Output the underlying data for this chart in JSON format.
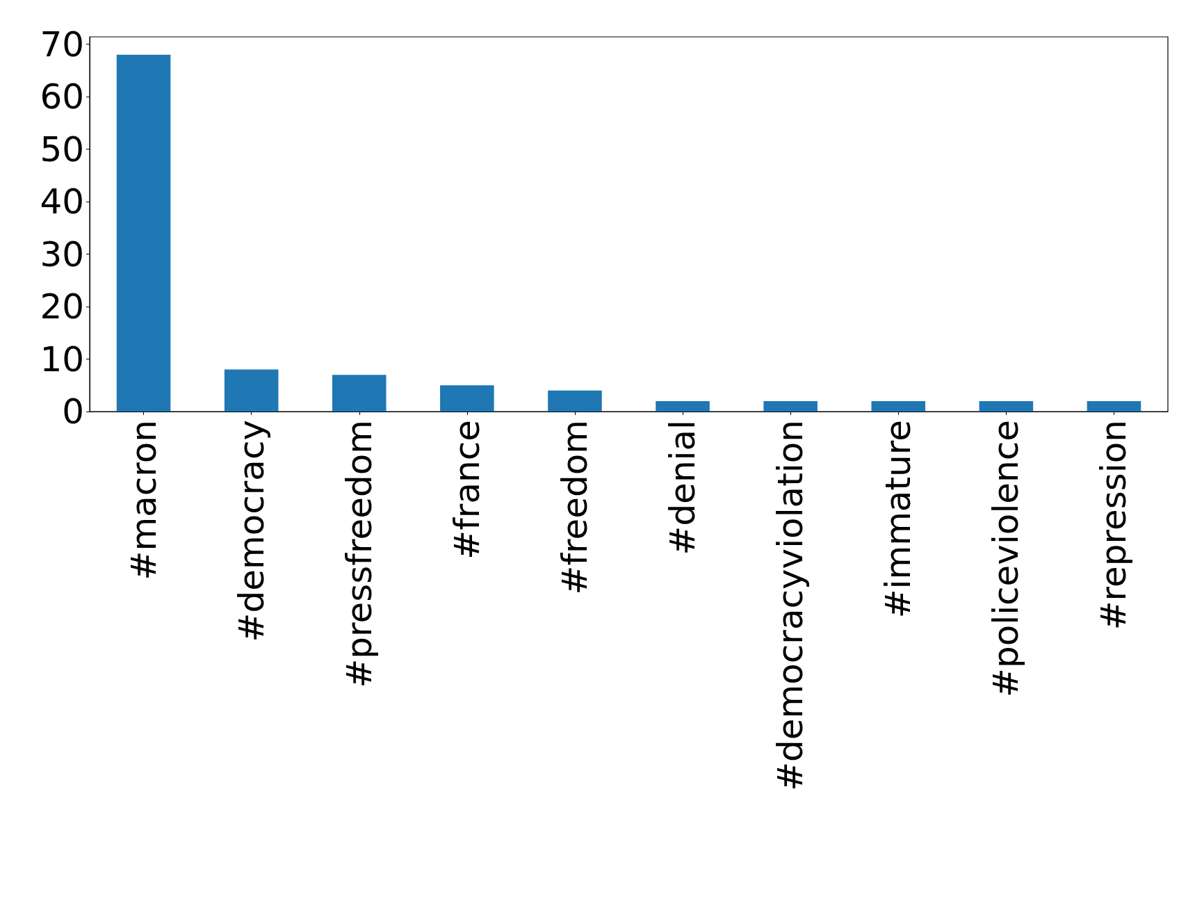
{
  "chart_data": {
    "type": "bar",
    "categories": [
      "#macron",
      "#democracy",
      "#pressfreedom",
      "#france",
      "#freedom",
      "#denial",
      "#democracyviolation",
      "#immature",
      "#policeviolence",
      "#repression"
    ],
    "values": [
      68,
      8,
      7,
      5,
      4,
      2,
      2,
      2,
      2,
      2
    ],
    "color": "#1f77b4",
    "ylim": [
      0,
      71.4
    ],
    "yticks": [
      0,
      10,
      20,
      30,
      40,
      50,
      60,
      70
    ]
  }
}
